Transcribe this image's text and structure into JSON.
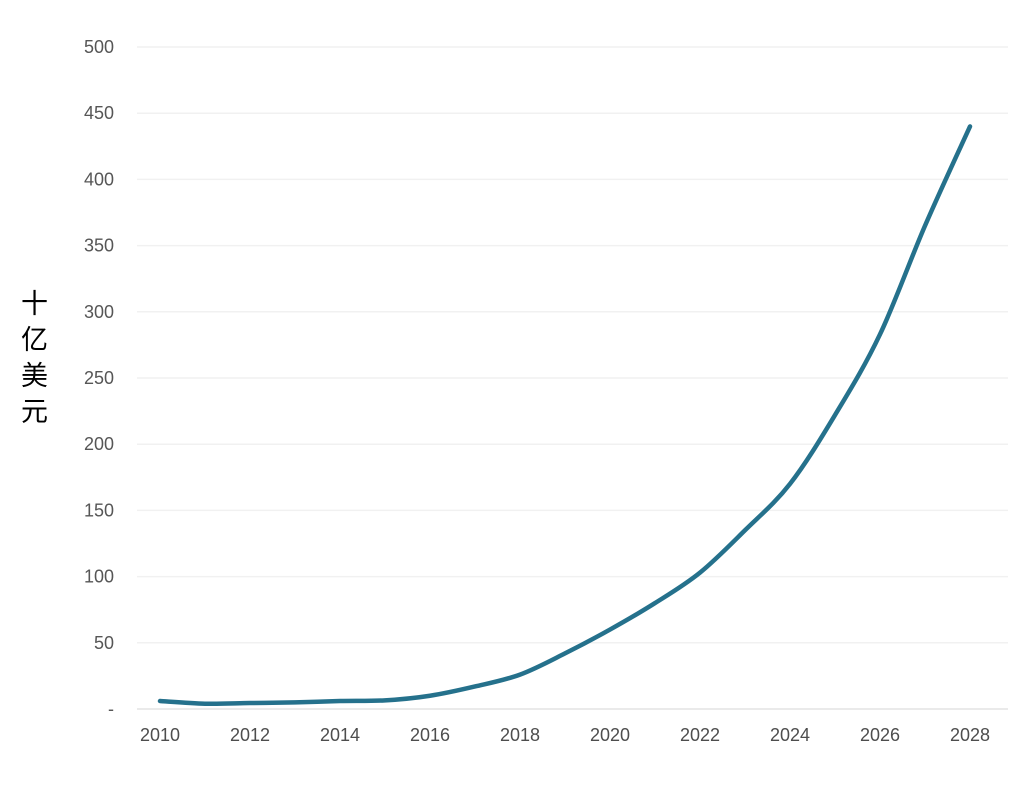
{
  "chart_data": {
    "type": "line",
    "title": "",
    "xlabel": "",
    "ylabel": "十亿美元",
    "x": [
      2010,
      2011,
      2012,
      2013,
      2014,
      2015,
      2016,
      2017,
      2018,
      2019,
      2020,
      2021,
      2022,
      2023,
      2024,
      2025,
      2026,
      2027,
      2028
    ],
    "values": [
      6,
      4,
      4.5,
      5,
      6,
      6.5,
      10,
      17,
      26,
      42,
      60,
      80,
      103,
      135,
      170,
      222,
      283,
      365,
      440
    ],
    "ylim": [
      0,
      500
    ],
    "y_ticks": [
      {
        "value": 0,
        "label": "-"
      },
      {
        "value": 50,
        "label": "50"
      },
      {
        "value": 100,
        "label": "100"
      },
      {
        "value": 150,
        "label": "150"
      },
      {
        "value": 200,
        "label": "200"
      },
      {
        "value": 250,
        "label": "250"
      },
      {
        "value": 300,
        "label": "300"
      },
      {
        "value": 350,
        "label": "350"
      },
      {
        "value": 400,
        "label": "400"
      },
      {
        "value": 450,
        "label": "450"
      },
      {
        "value": 500,
        "label": "500"
      }
    ],
    "x_tick_labels": [
      "2010",
      "2012",
      "2014",
      "2016",
      "2018",
      "2020",
      "2022",
      "2024",
      "2026",
      "2028"
    ],
    "grid": true,
    "legend": "none",
    "colors": {
      "line": "#25718c",
      "grid": "#f1f1f1",
      "baseline": "#e3e3e3",
      "y_tick_text": "#565656",
      "x_tick_text": "#4d4d4d",
      "background": "#ffffff"
    }
  }
}
